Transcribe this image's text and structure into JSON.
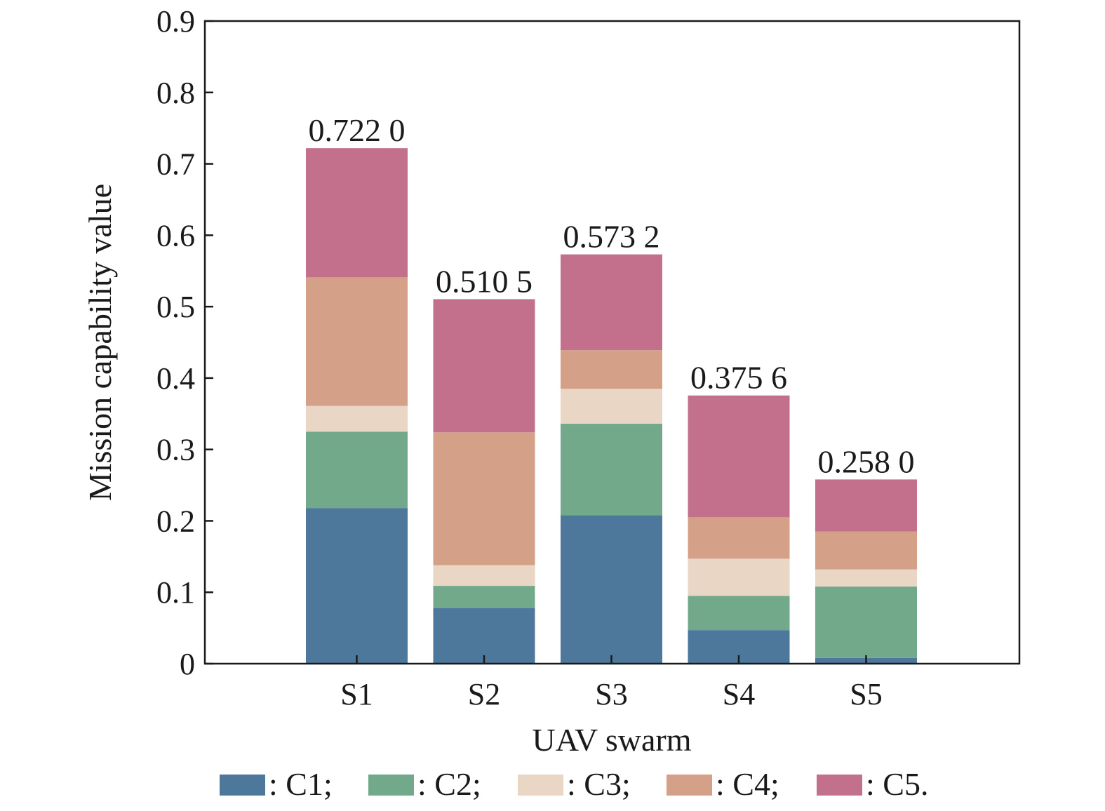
{
  "chart_data": {
    "type": "bar",
    "stacked": true,
    "xlabel": "UAV swarm",
    "ylabel": "Mission capability value",
    "ylim": [
      0,
      0.9
    ],
    "yticks": [
      "0",
      "0.1",
      "0.2",
      "0.3",
      "0.4",
      "0.5",
      "0.6",
      "0.7",
      "0.8",
      "0.9"
    ],
    "categories": [
      "S1",
      "S2",
      "S3",
      "S4",
      "S5"
    ],
    "series": [
      {
        "name": "C1",
        "legend_label": ": C1;",
        "color": "#4d779b",
        "values": [
          0.218,
          0.078,
          0.208,
          0.047,
          0.008
        ]
      },
      {
        "name": "C2",
        "legend_label": ": C2;",
        "color": "#73a98b",
        "values": [
          0.107,
          0.031,
          0.128,
          0.048,
          0.1
        ]
      },
      {
        "name": "C3",
        "legend_label": ": C3;",
        "color": "#e9d6c5",
        "values": [
          0.036,
          0.029,
          0.049,
          0.052,
          0.024
        ]
      },
      {
        "name": "C4",
        "legend_label": ": C4;",
        "color": "#d5a088",
        "values": [
          0.18,
          0.186,
          0.054,
          0.058,
          0.053
        ]
      },
      {
        "name": "C5",
        "legend_label": ": C5.",
        "color": "#c2708c",
        "values": [
          0.181,
          0.1865,
          0.1342,
          0.1706,
          0.073
        ]
      }
    ],
    "totals": [
      0.722,
      0.5105,
      0.5732,
      0.3756,
      0.258
    ],
    "total_labels": [
      "0.722 0",
      "0.510 5",
      "0.573 2",
      "0.375 6",
      "0.258 0"
    ],
    "legend_position": "bottom",
    "grid": false
  }
}
